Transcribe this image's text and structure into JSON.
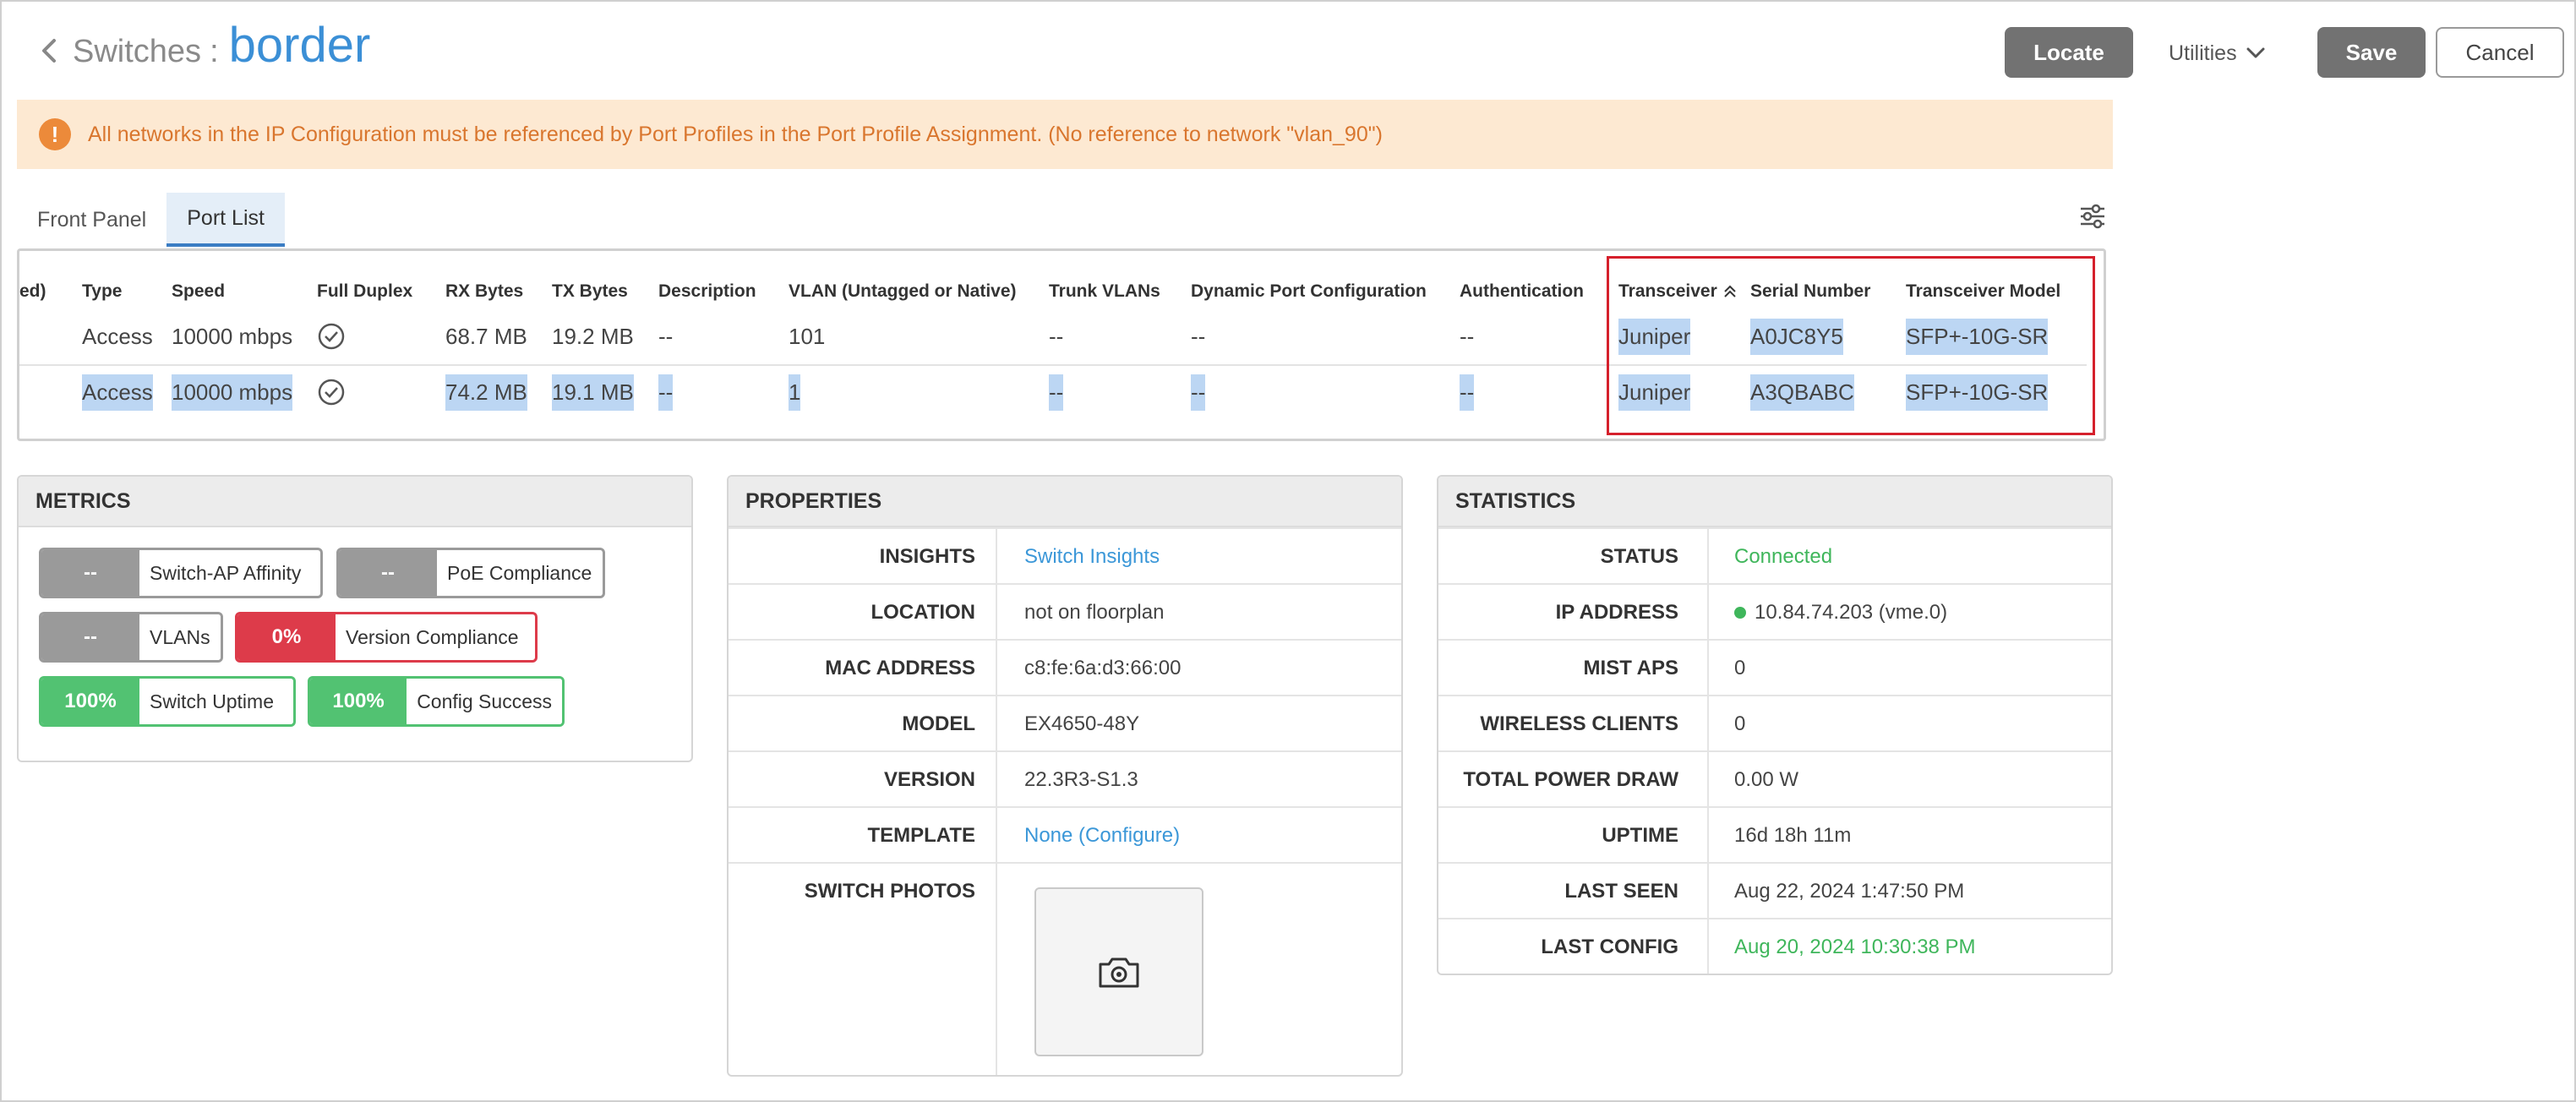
{
  "header": {
    "breadcrumb": "Switches",
    "separator": ":",
    "switch_name": "border",
    "locate_label": "Locate",
    "utilities_label": "Utilities",
    "save_label": "Save",
    "cancel_label": "Cancel"
  },
  "banner": {
    "icon": "!",
    "message": "All networks in the IP Configuration must be referenced by Port Profiles in the Port Profile Assignment. (No reference to network \"vlan_90\")"
  },
  "tabs": [
    {
      "label": "Front Panel",
      "active": false
    },
    {
      "label": "Port List",
      "active": true
    }
  ],
  "port_table": {
    "columns": {
      "enabled_partial": "ed)",
      "type": "Type",
      "speed": "Speed",
      "full_duplex": "Full Duplex",
      "rx_bytes": "RX Bytes",
      "tx_bytes": "TX Bytes",
      "description": "Description",
      "vlan": "VLAN (Untagged or Native)",
      "trunk_vlans": "Trunk VLANs",
      "dynamic_port": "Dynamic Port Configuration",
      "authentication": "Authentication",
      "transceiver": "Transceiver",
      "serial_number": "Serial Number",
      "transceiver_model": "Transceiver Model"
    },
    "rows": [
      {
        "type": "Access",
        "speed": "10000 mbps",
        "rx": "68.7 MB",
        "tx": "19.2 MB",
        "description": "--",
        "vlan": "101",
        "trunk": "--",
        "dynamic": "--",
        "auth": "--",
        "transceiver": "Juniper",
        "serial": "A0JC8Y5",
        "model": "SFP+-10G-SR"
      },
      {
        "type": "Access",
        "speed": "10000 mbps",
        "rx": "74.2 MB",
        "tx": "19.1 MB",
        "description": "--",
        "vlan": "1",
        "trunk": "--",
        "dynamic": "--",
        "auth": "--",
        "transceiver": "Juniper",
        "serial": "A3QBABC",
        "model": "SFP+-10G-SR"
      }
    ],
    "highlight_color": "#d5202c"
  },
  "metrics": {
    "title": "METRICS",
    "items": [
      {
        "value": "--",
        "label": "Switch-AP Affinity",
        "status": "neutral"
      },
      {
        "value": "--",
        "label": "PoE Compliance",
        "status": "neutral"
      },
      {
        "value": "--",
        "label": "VLANs",
        "status": "neutral"
      },
      {
        "value": "0%",
        "label": "Version Compliance",
        "status": "bad"
      },
      {
        "value": "100%",
        "label": "Switch Uptime",
        "status": "good"
      },
      {
        "value": "100%",
        "label": "Config Success",
        "status": "good"
      }
    ]
  },
  "properties": {
    "title": "PROPERTIES",
    "rows": [
      {
        "key": "INSIGHTS",
        "value": "Switch Insights"
      },
      {
        "key": "LOCATION",
        "value": "not on floorplan"
      },
      {
        "key": "MAC ADDRESS",
        "value": "c8:fe:6a:d3:66:00"
      },
      {
        "key": "MODEL",
        "value": "EX4650-48Y"
      },
      {
        "key": "VERSION",
        "value": "22.3R3-S1.3"
      },
      {
        "key": "TEMPLATE",
        "value": "None (Configure)"
      },
      {
        "key": "SWITCH PHOTOS",
        "value": ""
      }
    ]
  },
  "statistics": {
    "title": "STATISTICS",
    "rows": [
      {
        "key": "STATUS",
        "value": "Connected"
      },
      {
        "key": "IP ADDRESS",
        "value": "10.84.74.203  (vme.0)"
      },
      {
        "key": "MIST APS",
        "value": "0"
      },
      {
        "key": "WIRELESS CLIENTS",
        "value": "0"
      },
      {
        "key": "TOTAL POWER DRAW",
        "value": "0.00 W"
      },
      {
        "key": "UPTIME",
        "value": "16d 18h 11m"
      },
      {
        "key": "LAST SEEN",
        "value": "Aug 22, 2024 1:47:50 PM"
      },
      {
        "key": "LAST CONFIG",
        "value": "Aug 20, 2024 10:30:38 PM"
      }
    ]
  },
  "colors": {
    "accent_blue": "#3b8fd6",
    "status_green": "#3fb65b",
    "metric_red": "#dd3b4a",
    "metric_green": "#52c272",
    "warning_bg": "#fde9d2",
    "warning_text": "#d9762e"
  },
  "icons": {
    "back": "chevron-left-icon",
    "utilities": "chevron-down-icon",
    "warning": "exclamation-circle-icon",
    "settings": "sliders-icon",
    "duplex": "check-circle-icon",
    "sort": "sort-up-icon",
    "photo": "camera-icon"
  }
}
